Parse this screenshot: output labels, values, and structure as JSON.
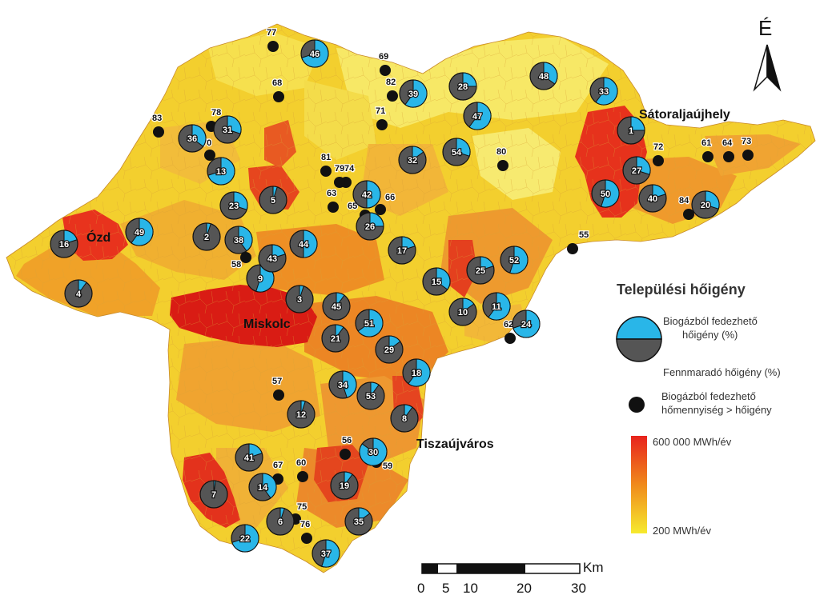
{
  "legend": {
    "title": "Települési hőigény",
    "pie_top_label": "Biogázból fedezhető hőigény (%)",
    "pie_bottom_label": "Fennmaradó hőigény (%)",
    "dot_label": "Biogázból fedezhető hőmennyiség > hőigény",
    "ramp_max_label": "600 000 MWh/év",
    "ramp_min_label": "200 MWh/év",
    "colors": {
      "covered": "#29b6e8",
      "remaining": "#555555",
      "high": "#e8231d",
      "low": "#f5e830"
    }
  },
  "north_arrow": {
    "label": "É"
  },
  "scale_bar": {
    "unit": "Km",
    "ticks": [
      "0",
      "5",
      "10",
      "20",
      "30"
    ]
  },
  "cities": [
    "Sátoraljaújhely",
    "Ózd",
    "Miskolc",
    "Tiszaújváros"
  ],
  "pie_sites": [
    {
      "id": "1",
      "covered_pct": 25
    },
    {
      "id": "2",
      "covered_pct": 5
    },
    {
      "id": "3",
      "covered_pct": 5
    },
    {
      "id": "4",
      "covered_pct": 10
    },
    {
      "id": "5",
      "covered_pct": 5
    },
    {
      "id": "6",
      "covered_pct": 5
    },
    {
      "id": "7",
      "covered_pct": 2
    },
    {
      "id": "8",
      "covered_pct": 10
    },
    {
      "id": "9",
      "covered_pct": 55
    },
    {
      "id": "10",
      "covered_pct": 15
    },
    {
      "id": "11",
      "covered_pct": 60
    },
    {
      "id": "12",
      "covered_pct": 5
    },
    {
      "id": "13",
      "covered_pct": 70
    },
    {
      "id": "14",
      "covered_pct": 40
    },
    {
      "id": "15",
      "covered_pct": 35
    },
    {
      "id": "16",
      "covered_pct": 20
    },
    {
      "id": "17",
      "covered_pct": 20
    },
    {
      "id": "18",
      "covered_pct": 60
    },
    {
      "id": "19",
      "covered_pct": 10
    },
    {
      "id": "20",
      "covered_pct": 30
    },
    {
      "id": "21",
      "covered_pct": 10
    },
    {
      "id": "22",
      "covered_pct": 70
    },
    {
      "id": "23",
      "covered_pct": 30
    },
    {
      "id": "24",
      "covered_pct": 70
    },
    {
      "id": "25",
      "covered_pct": 20
    },
    {
      "id": "26",
      "covered_pct": 25
    },
    {
      "id": "27",
      "covered_pct": 30
    },
    {
      "id": "28",
      "covered_pct": 25
    },
    {
      "id": "29",
      "covered_pct": 15
    },
    {
      "id": "30",
      "covered_pct": 85
    },
    {
      "id": "31",
      "covered_pct": 30
    },
    {
      "id": "32",
      "covered_pct": 15
    },
    {
      "id": "33",
      "covered_pct": 60
    },
    {
      "id": "34",
      "covered_pct": 45
    },
    {
      "id": "35",
      "covered_pct": 15
    },
    {
      "id": "36",
      "covered_pct": 35
    },
    {
      "id": "37",
      "covered_pct": 55
    },
    {
      "id": "38",
      "covered_pct": 40
    },
    {
      "id": "39",
      "covered_pct": 60
    },
    {
      "id": "40",
      "covered_pct": 20
    },
    {
      "id": "41",
      "covered_pct": 20
    },
    {
      "id": "42",
      "covered_pct": 50
    },
    {
      "id": "43",
      "covered_pct": 20
    },
    {
      "id": "44",
      "covered_pct": 50
    },
    {
      "id": "45",
      "covered_pct": 10
    },
    {
      "id": "46",
      "covered_pct": 70
    },
    {
      "id": "47",
      "covered_pct": 60
    },
    {
      "id": "48",
      "covered_pct": 35
    },
    {
      "id": "49",
      "covered_pct": 60
    },
    {
      "id": "50",
      "covered_pct": 55
    },
    {
      "id": "51",
      "covered_pct": 65
    },
    {
      "id": "52",
      "covered_pct": 55
    },
    {
      "id": "53",
      "covered_pct": 10
    },
    {
      "id": "54",
      "covered_pct": 30
    }
  ],
  "dot_sites": [
    "55",
    "56",
    "57",
    "58",
    "59",
    "60",
    "61",
    "62",
    "63",
    "64",
    "65",
    "66",
    "67",
    "68",
    "69",
    "70",
    "71",
    "72",
    "73",
    "74",
    "75",
    "76",
    "77",
    "78",
    "79",
    "80",
    "81",
    "82",
    "83",
    "84"
  ]
}
